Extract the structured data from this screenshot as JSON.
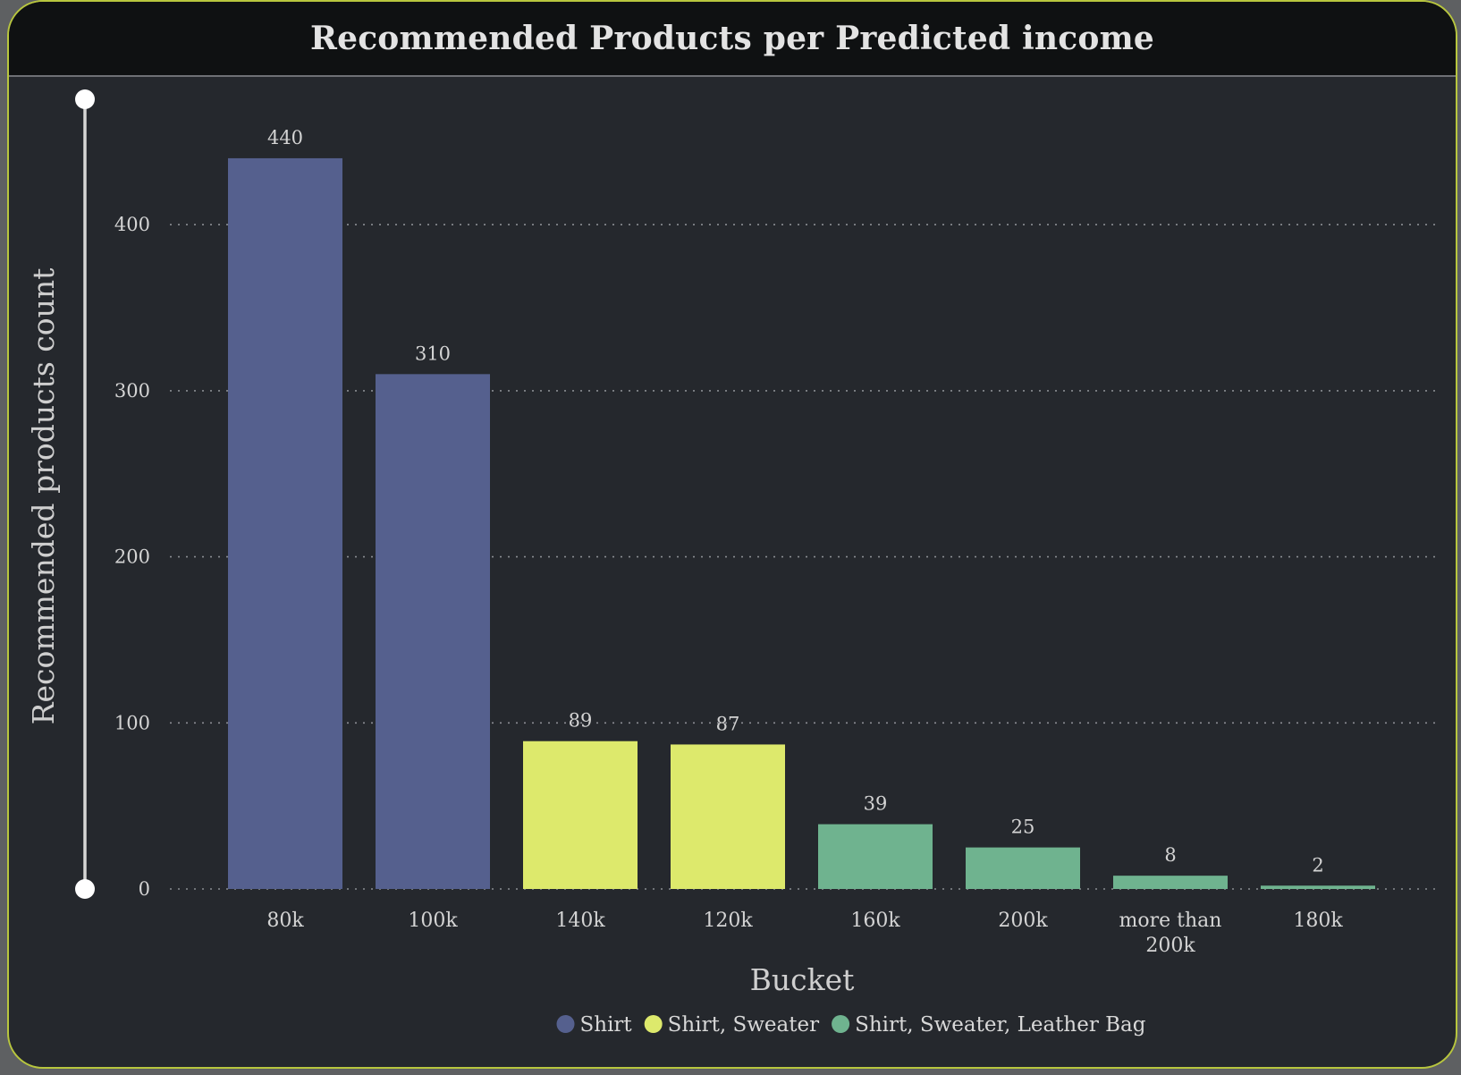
{
  "chart_data": {
    "type": "bar",
    "title": "Recommended Products per Predicted income",
    "xlabel": "Bucket",
    "ylabel": "Recommended products count",
    "ylim": [
      0,
      480
    ],
    "yticks": [
      0,
      100,
      200,
      300,
      400
    ],
    "grid": true,
    "legend_position": "bottom",
    "categories": [
      [
        "80k"
      ],
      [
        "100k"
      ],
      [
        "140k"
      ],
      [
        "120k"
      ],
      [
        "160k"
      ],
      [
        "200k"
      ],
      [
        "more than",
        "200k"
      ],
      [
        "180k"
      ]
    ],
    "values": [
      440,
      310,
      89,
      87,
      39,
      25,
      8,
      2
    ],
    "groups": [
      0,
      0,
      1,
      1,
      2,
      2,
      2,
      2
    ],
    "legend": [
      {
        "label": "Shirt",
        "color": "#55608e"
      },
      {
        "label": "Shirt, Sweater",
        "color": "#dde96c"
      },
      {
        "label": "Shirt, Sweater, Leather Bag",
        "color": "#6fb38f"
      }
    ]
  }
}
